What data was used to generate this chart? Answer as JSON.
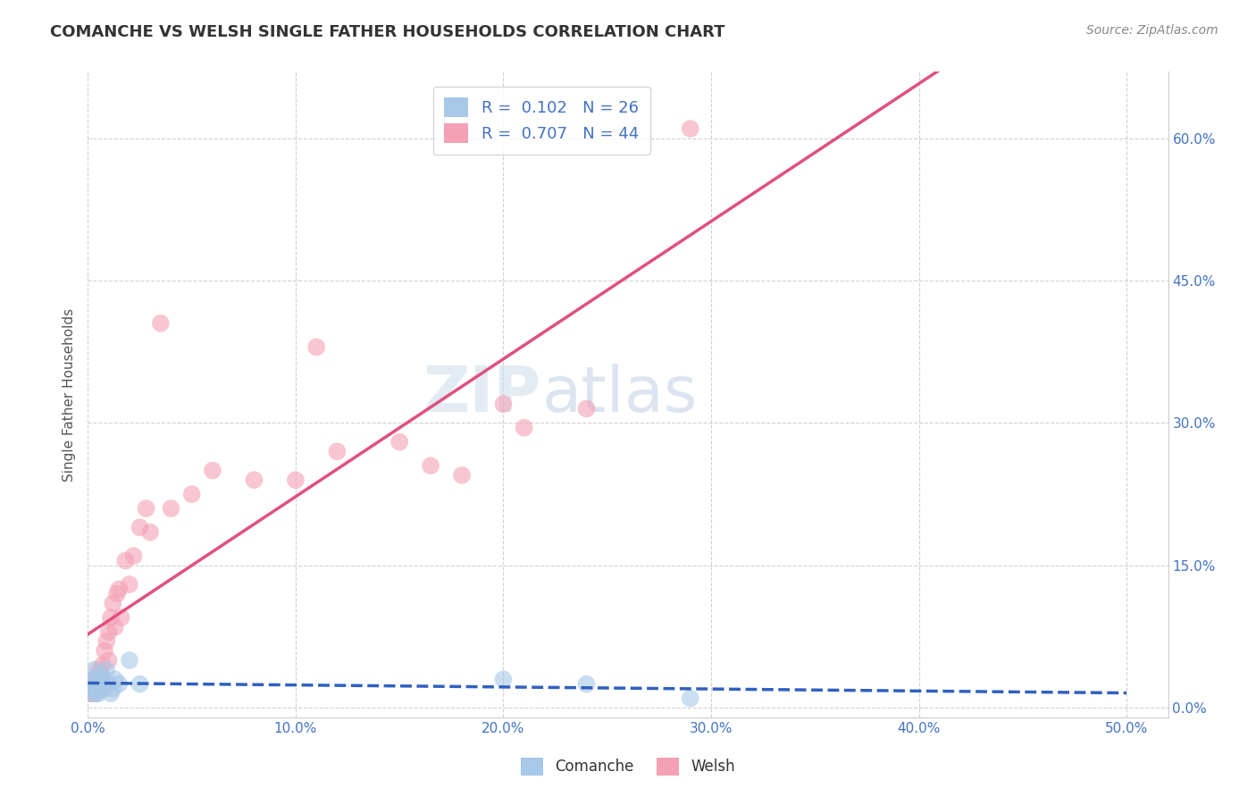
{
  "title": "COMANCHE VS WELSH SINGLE FATHER HOUSEHOLDS CORRELATION CHART",
  "source_text": "Source: ZipAtlas.com",
  "ylabel": "Single Father Households",
  "xlim": [
    0.0,
    0.52
  ],
  "ylim": [
    -0.01,
    0.67
  ],
  "comanche_R": "0.102",
  "comanche_N": "26",
  "welsh_R": "0.707",
  "welsh_N": "44",
  "comanche_color": "#a8c8e8",
  "welsh_color": "#f4a0b5",
  "comanche_line_color": "#3060c0",
  "welsh_line_color": "#e05080",
  "legend_label_comanche": "Comanche",
  "legend_label_welsh": "Welsh",
  "background_color": "#ffffff",
  "grid_color": "#cccccc",
  "watermark_zip": "ZIP",
  "watermark_atlas": "atlas",
  "comanche_x": [
    0.0,
    0.001,
    0.002,
    0.002,
    0.003,
    0.003,
    0.004,
    0.004,
    0.005,
    0.005,
    0.006,
    0.006,
    0.007,
    0.008,
    0.008,
    0.009,
    0.01,
    0.011,
    0.012,
    0.013,
    0.015,
    0.02,
    0.025,
    0.2,
    0.24,
    0.29
  ],
  "comanche_y": [
    0.02,
    0.025,
    0.015,
    0.03,
    0.02,
    0.04,
    0.015,
    0.025,
    0.03,
    0.015,
    0.02,
    0.035,
    0.025,
    0.02,
    0.03,
    0.04,
    0.025,
    0.015,
    0.02,
    0.03,
    0.025,
    0.05,
    0.025,
    0.03,
    0.025,
    0.01
  ],
  "welsh_x": [
    0.0,
    0.001,
    0.002,
    0.002,
    0.003,
    0.003,
    0.004,
    0.004,
    0.005,
    0.005,
    0.006,
    0.006,
    0.007,
    0.008,
    0.009,
    0.01,
    0.01,
    0.011,
    0.012,
    0.013,
    0.014,
    0.015,
    0.016,
    0.018,
    0.02,
    0.022,
    0.025,
    0.028,
    0.03,
    0.035,
    0.04,
    0.05,
    0.06,
    0.08,
    0.1,
    0.11,
    0.12,
    0.15,
    0.165,
    0.18,
    0.2,
    0.21,
    0.24,
    0.29
  ],
  "welsh_y": [
    0.02,
    0.015,
    0.02,
    0.025,
    0.015,
    0.03,
    0.025,
    0.02,
    0.03,
    0.04,
    0.035,
    0.02,
    0.045,
    0.06,
    0.07,
    0.08,
    0.05,
    0.095,
    0.11,
    0.085,
    0.12,
    0.125,
    0.095,
    0.155,
    0.13,
    0.16,
    0.19,
    0.21,
    0.185,
    0.405,
    0.21,
    0.225,
    0.25,
    0.24,
    0.24,
    0.38,
    0.27,
    0.28,
    0.255,
    0.245,
    0.32,
    0.295,
    0.315,
    0.61
  ],
  "xtick_vals": [
    0.0,
    0.1,
    0.2,
    0.3,
    0.4,
    0.5
  ],
  "ytick_vals": [
    0.0,
    0.15,
    0.3,
    0.45,
    0.6
  ]
}
